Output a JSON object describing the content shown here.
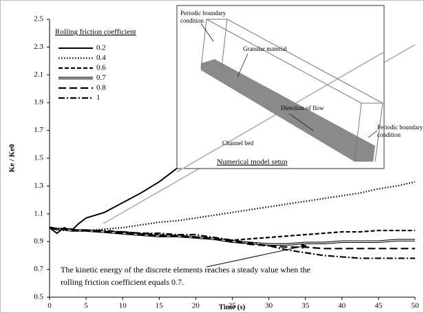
{
  "chart_data": {
    "type": "line",
    "x_label": "Time (s)",
    "y_label": "Ke / Ke0",
    "legend_title": "Rolling friction coefficient",
    "x": [
      0,
      1,
      2,
      3,
      4,
      5,
      7.5,
      10,
      12.5,
      15,
      17.5,
      20,
      22.5,
      25,
      27.5,
      30,
      32.5,
      35,
      37.5,
      40,
      42.5,
      45,
      47.5,
      50
    ],
    "series": [
      {
        "name": "0.2",
        "color": "#000000",
        "style": "solid",
        "values": [
          1.0,
          0.96,
          1.0,
          0.98,
          1.03,
          1.07,
          1.11,
          1.18,
          1.25,
          1.33,
          1.43,
          null,
          null,
          null,
          null,
          null,
          null,
          null,
          null,
          null,
          null,
          null,
          null,
          null
        ]
      },
      {
        "name": "0.4",
        "color": "#000000",
        "style": "dotted",
        "values": [
          1.0,
          0.99,
          0.98,
          0.98,
          0.98,
          0.98,
          0.99,
          1.0,
          1.02,
          1.04,
          1.05,
          1.07,
          1.09,
          1.11,
          1.13,
          1.15,
          1.17,
          1.19,
          1.21,
          1.23,
          1.25,
          1.28,
          1.3,
          1.33
        ]
      },
      {
        "name": "0.6",
        "color": "#000000",
        "style": "dashed",
        "values": [
          1.0,
          0.99,
          0.99,
          0.99,
          0.98,
          0.98,
          0.97,
          0.97,
          0.96,
          0.95,
          0.94,
          0.93,
          0.92,
          0.91,
          0.92,
          0.93,
          0.94,
          0.95,
          0.96,
          0.97,
          0.97,
          0.98,
          0.98,
          0.98
        ]
      },
      {
        "name": "0.7",
        "color": "#000000",
        "style": "double",
        "values": [
          1.0,
          0.99,
          0.99,
          0.98,
          0.98,
          0.98,
          0.97,
          0.96,
          0.95,
          0.94,
          0.94,
          0.93,
          0.92,
          0.9,
          0.89,
          0.88,
          0.88,
          0.89,
          0.89,
          0.9,
          0.9,
          0.9,
          0.91,
          0.91
        ]
      },
      {
        "name": "0.8",
        "color": "#000000",
        "style": "long-dash",
        "values": [
          1.0,
          0.99,
          0.99,
          0.98,
          0.98,
          0.98,
          0.97,
          0.96,
          0.95,
          0.94,
          0.94,
          0.93,
          0.92,
          0.9,
          0.88,
          0.87,
          0.86,
          0.86,
          0.85,
          0.85,
          0.85,
          0.85,
          0.85,
          0.85
        ]
      },
      {
        "name": "1",
        "color": "#000000",
        "style": "dash-dot",
        "values": [
          1.0,
          0.99,
          0.99,
          0.99,
          0.98,
          0.98,
          0.98,
          0.97,
          0.96,
          0.96,
          0.95,
          0.95,
          0.93,
          0.91,
          0.89,
          0.87,
          0.84,
          0.82,
          0.8,
          0.79,
          0.78,
          0.78,
          0.78,
          0.78
        ]
      }
    ],
    "xlim": [
      0,
      50
    ],
    "xticks": [
      0,
      5,
      10,
      15,
      20,
      25,
      30,
      35,
      40,
      45,
      50
    ],
    "ylim": [
      0.5,
      2.5
    ],
    "yticks": [
      0.5,
      0.7,
      0.9,
      1.1,
      1.3,
      1.5,
      1.7,
      1.9,
      2.1,
      2.3,
      2.5
    ],
    "grid": false,
    "legend": "upper-left",
    "annotation": [
      "The kinetic energy of the discrete elements reaches a steady value when the",
      "rolling friction coefficient equals 0.7."
    ],
    "inset": {
      "caption": "Numerical model setup",
      "labels": [
        [
          "Periodic boundary",
          "condition"
        ],
        [
          "Granular material"
        ],
        [
          "Direction of flow"
        ],
        [
          "Periodic boundary",
          "condition"
        ],
        [
          "Channel bed"
        ]
      ]
    }
  }
}
